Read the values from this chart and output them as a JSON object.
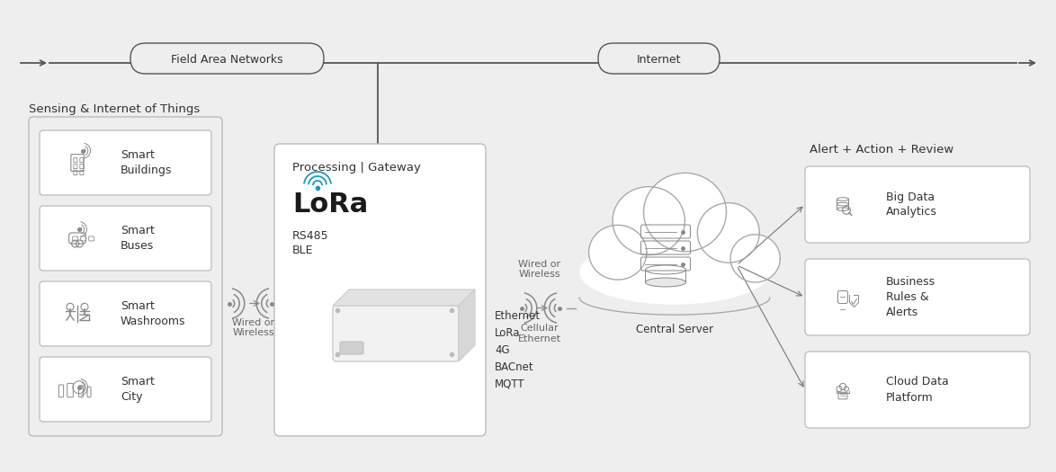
{
  "bg_color": "#eeeeee",
  "box_color": "#ffffff",
  "box_edge": "#aaaaaa",
  "line_color": "#555555",
  "text_color": "#333333",
  "icon_color": "#888888",
  "blue_lora": "#2196c4",
  "title_iot": "Sensing & Internet of Things",
  "gateway_title": "Processing | Gateway",
  "alert_title": "Alert + Action + Review",
  "iot_items": [
    "Smart\nBuildings",
    "Smart\nBuses",
    "Smart\nWashrooms",
    "Smart\nCity"
  ],
  "gateway_right_labels": [
    "Ethernet",
    "LoRa",
    "4G",
    "BACnet",
    "MQTT"
  ],
  "alert_items": [
    "Big Data\nAnalytics",
    "Business\nRules &\nAlerts",
    "Cloud Data\nPlatform"
  ],
  "field_area_label": "Field Area Networks",
  "internet_label": "Internet",
  "wired_wireless_left": "Wired or\nWireless",
  "wired_wireless_right": "Wired or\nWireless",
  "cellular_ethernet": "Cellular\nEthernet",
  "central_server_label": "Central Server",
  "lora_text": "LoRa",
  "rs485_text": "RS485",
  "ble_text": "BLE"
}
